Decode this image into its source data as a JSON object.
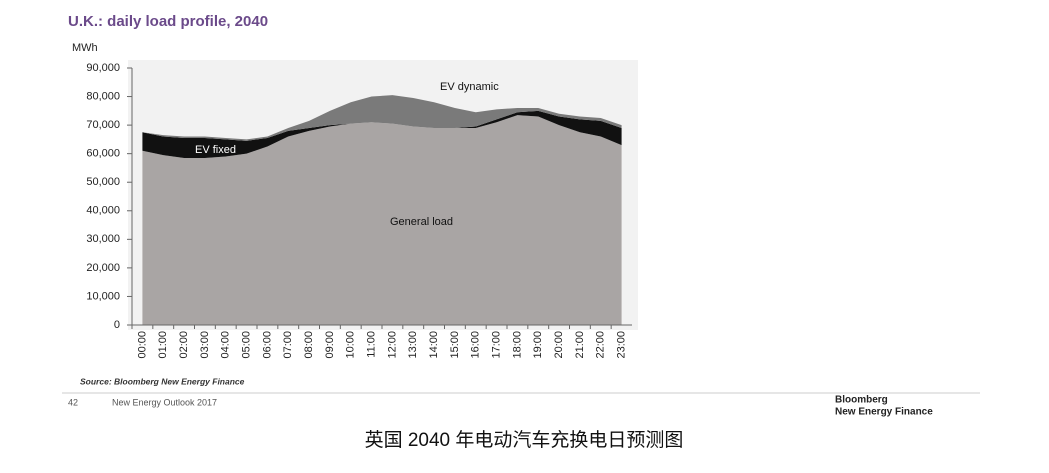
{
  "chart_data": {
    "type": "stacked_area",
    "title": "U.K.: daily load profile, 2040",
    "y_label": "MWh",
    "source": "Source: Bloomberg New Energy Finance",
    "categories": [
      "00:00",
      "01:00",
      "02:00",
      "03:00",
      "04:00",
      "05:00",
      "06:00",
      "07:00",
      "08:00",
      "09:00",
      "10:00",
      "11:00",
      "12:00",
      "13:00",
      "14:00",
      "15:00",
      "16:00",
      "17:00",
      "18:00",
      "19:00",
      "20:00",
      "21:00",
      "22:00",
      "23:00"
    ],
    "series": [
      {
        "name": "General load",
        "color": "#a9a5a4",
        "values": [
          61000,
          59500,
          58500,
          58500,
          59000,
          60000,
          62500,
          66000,
          68000,
          69500,
          70500,
          71000,
          70500,
          69500,
          69000,
          69000,
          69000,
          71000,
          73500,
          73000,
          70000,
          67500,
          66000,
          63000
        ]
      },
      {
        "name": "EV fixed",
        "color": "#111111",
        "values": [
          6500,
          6500,
          7000,
          7000,
          6000,
          4500,
          3000,
          2000,
          1000,
          500,
          0,
          0,
          0,
          0,
          0,
          0,
          500,
          1000,
          1000,
          2000,
          3000,
          4500,
          5500,
          6000
        ]
      },
      {
        "name": "EV dynamic",
        "color": "#7a7a7a",
        "values": [
          0,
          500,
          500,
          500,
          500,
          500,
          500,
          1000,
          2500,
          5000,
          7500,
          9000,
          10000,
          10000,
          9000,
          7000,
          5000,
          3500,
          1500,
          1000,
          1000,
          1000,
          1000,
          1000
        ]
      }
    ],
    "ylim": [
      0,
      90000
    ],
    "yticks": [
      0,
      {
        "value": 10000,
        "label": "10,000"
      },
      {
        "value": 20000,
        "label": "20,000"
      },
      {
        "value": 30000,
        "label": "30,000"
      },
      {
        "value": 40000,
        "label": "40,000"
      },
      {
        "value": 50000,
        "label": "50,000"
      },
      {
        "value": 60000,
        "label": "60,000"
      },
      {
        "value": 70000,
        "label": "70,000"
      },
      {
        "value": 80000,
        "label": "80,000"
      },
      {
        "value": 90000,
        "label": "90,000"
      }
    ]
  },
  "footer": {
    "page": "42",
    "report": "New Energy Outlook 2017",
    "brand_line1": "Bloomberg",
    "brand_line2": "New Energy Finance"
  },
  "caption": "英国 2040 年电动汽车充换电日预测图"
}
